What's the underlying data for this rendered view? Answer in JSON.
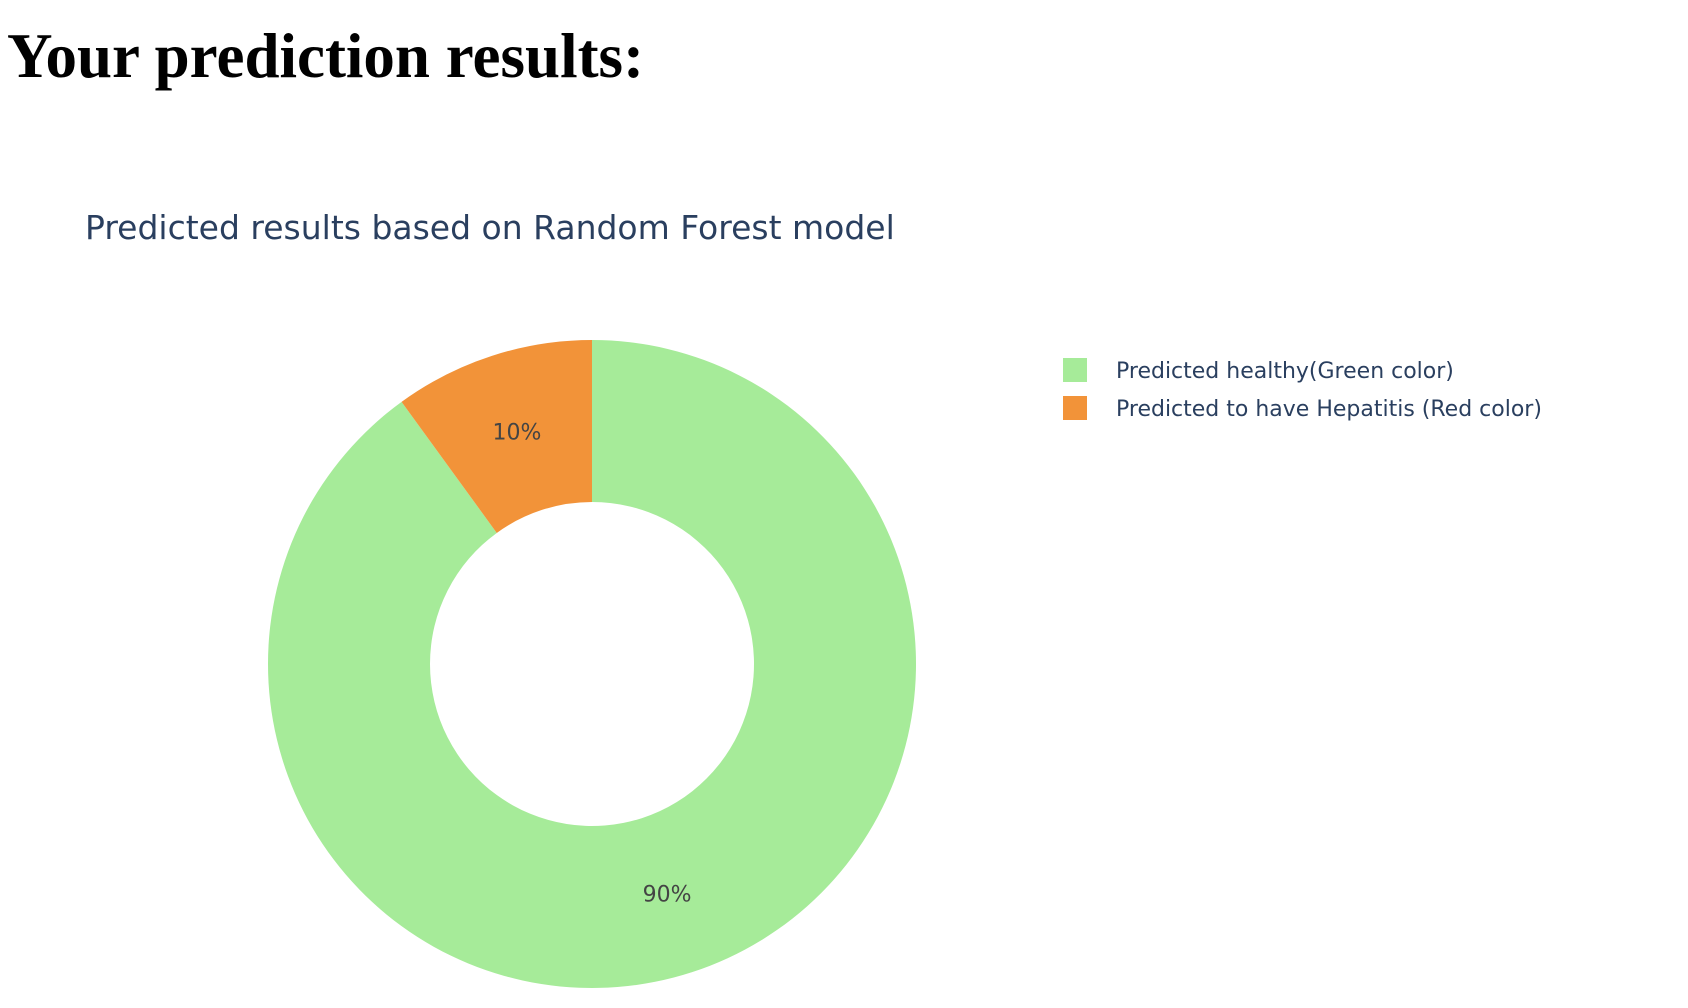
{
  "page": {
    "heading": "Your prediction results:"
  },
  "chart_data": {
    "type": "pie",
    "title": "Predicted results based on Random Forest model",
    "hole": 0.5,
    "direction": "clockwise",
    "rotation": "top",
    "legend_position": "top-right",
    "slices": [
      {
        "label": "Predicted healthy(Green color)",
        "value": 90,
        "text": "90%",
        "color": "#a6eb99"
      },
      {
        "label": "Predicted to have Hepatitis (Red color)",
        "value": 10,
        "text": "10%",
        "color": "#f29339"
      }
    ]
  }
}
